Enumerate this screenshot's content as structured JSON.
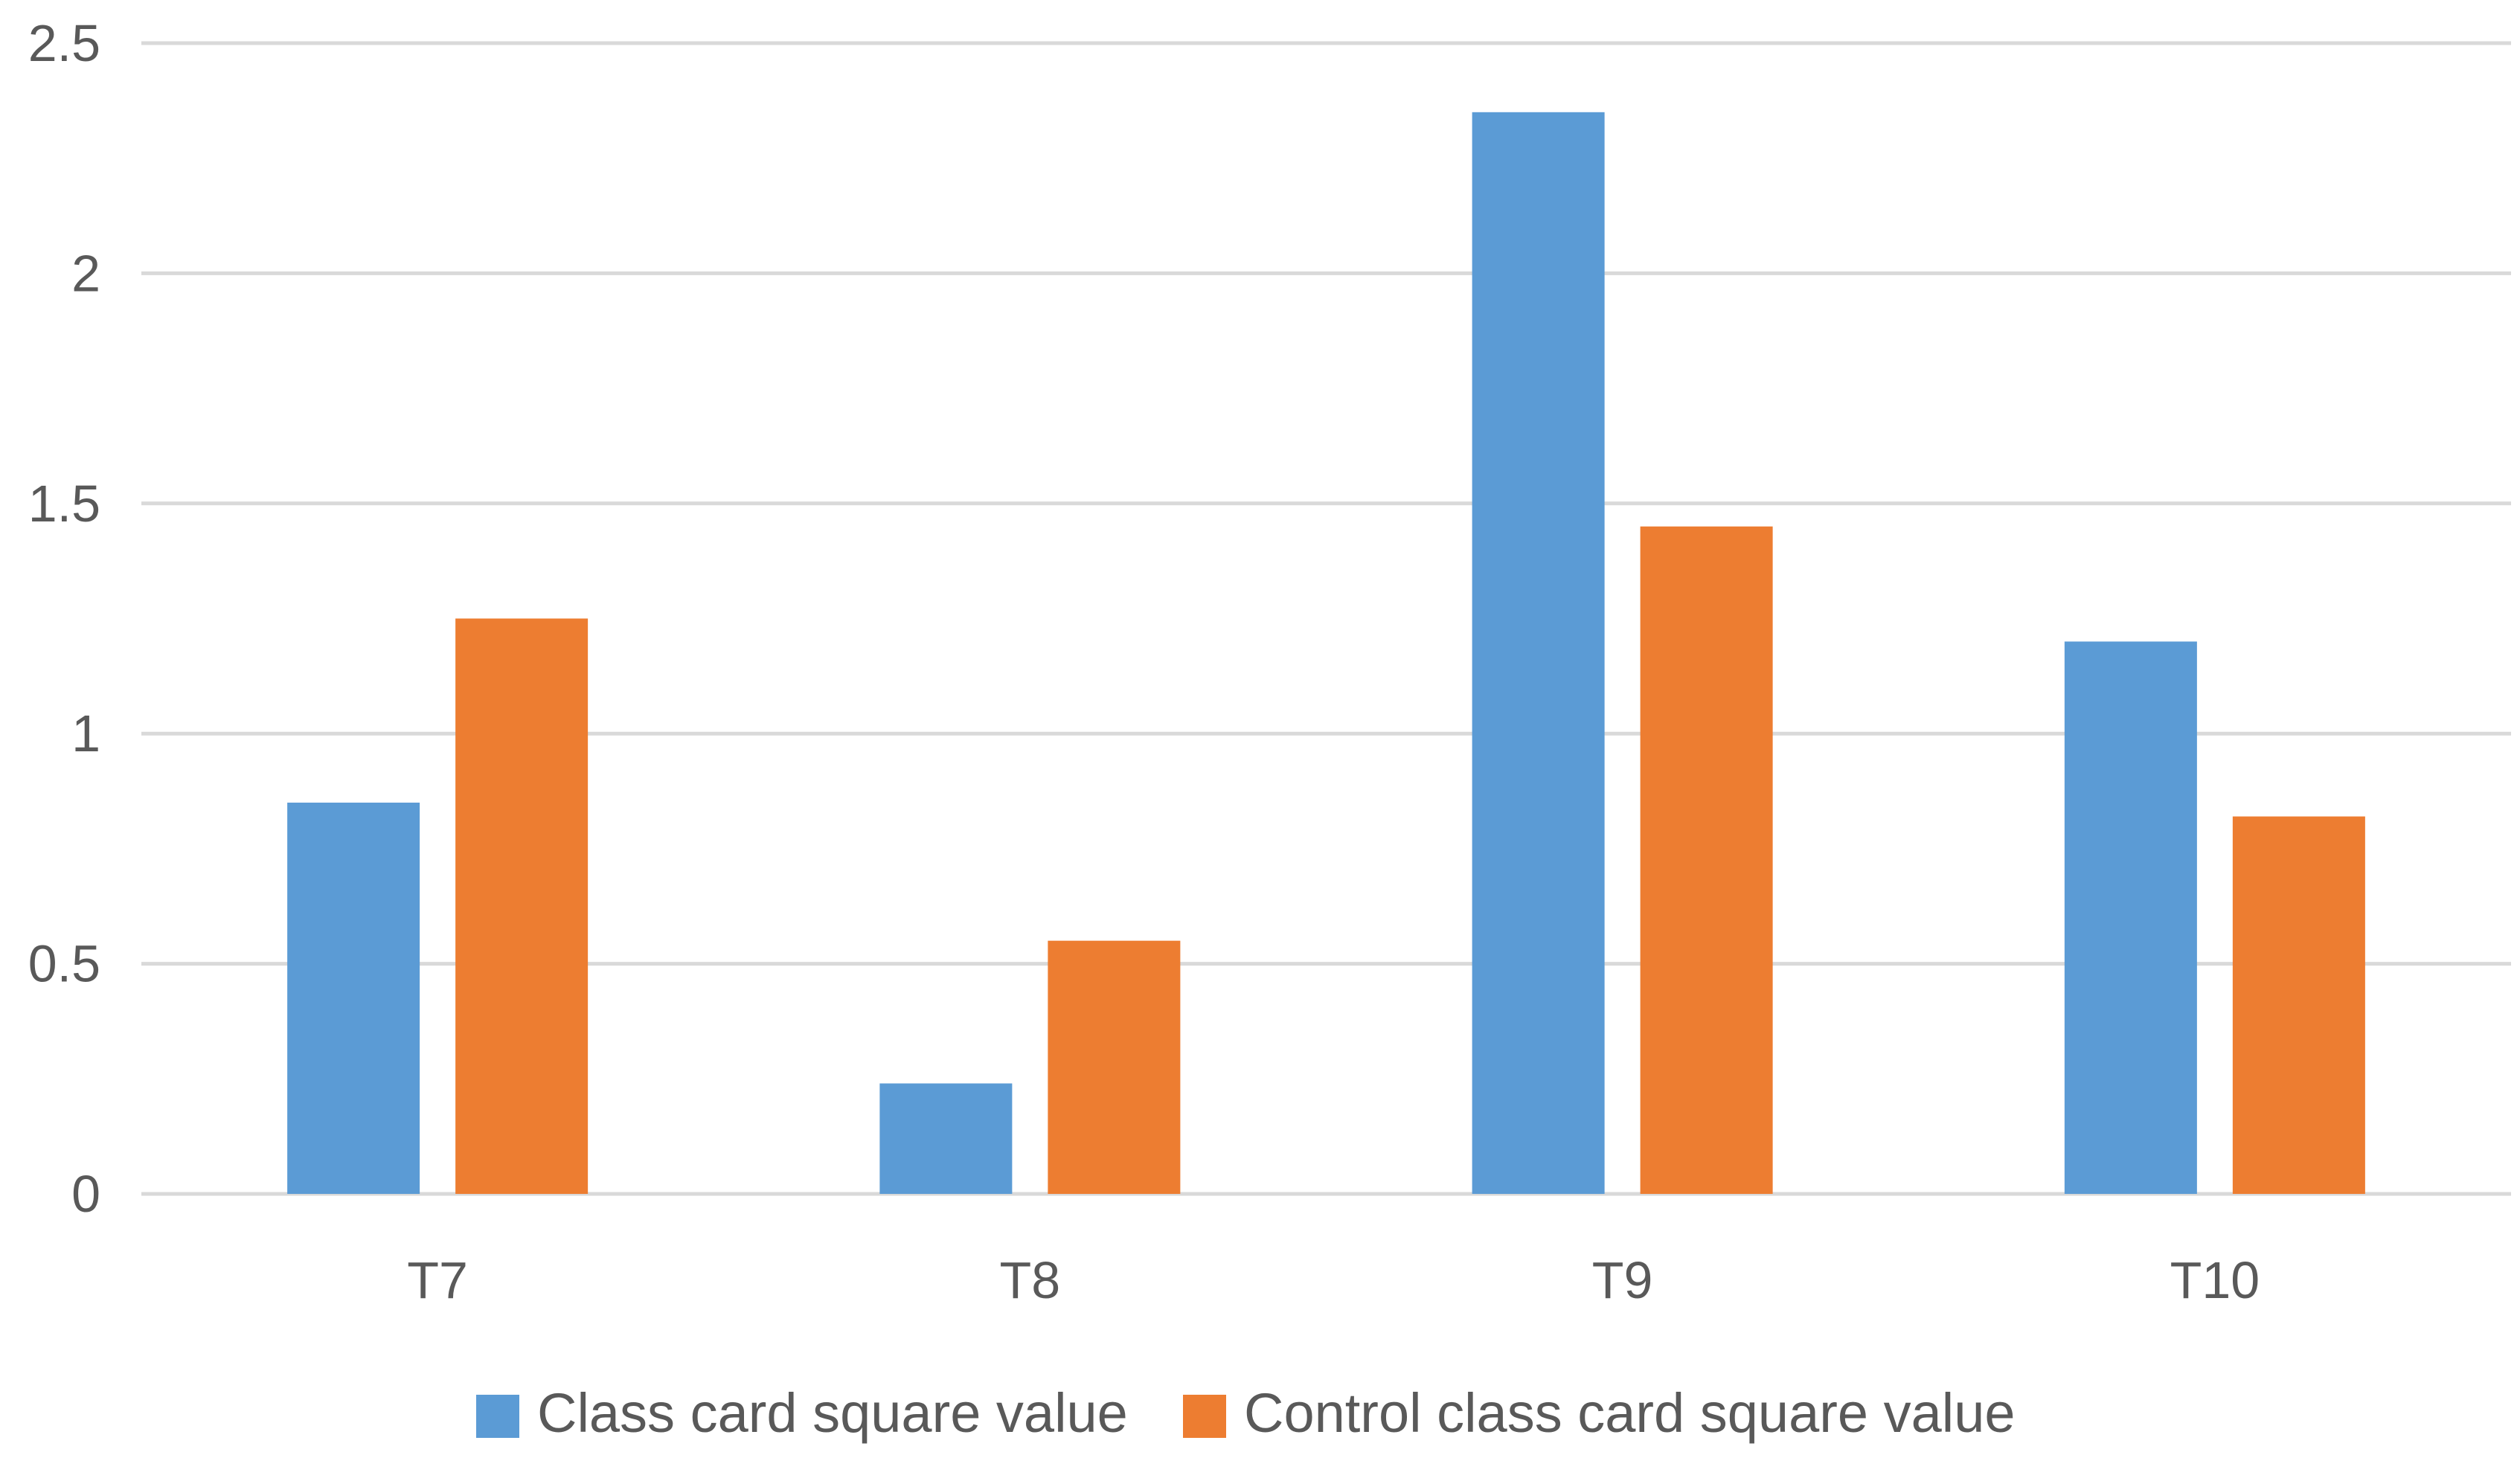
{
  "chart_data": {
    "type": "bar",
    "title": "",
    "xlabel": "",
    "ylabel": "",
    "categories": [
      "T7",
      "T8",
      "T9",
      "T10"
    ],
    "series": [
      {
        "name": "Class card square value",
        "values": [
          0.85,
          0.24,
          2.35,
          1.2
        ],
        "color": "#5b9bd5"
      },
      {
        "name": "Control class card square value",
        "values": [
          1.25,
          0.55,
          1.45,
          0.82
        ],
        "color": "#ed7d31"
      }
    ],
    "ylim": [
      0,
      2.5
    ],
    "y_ticks": [
      "0",
      "0.5",
      "1",
      "1.5",
      "2",
      "2.5"
    ],
    "grid": true,
    "legend_position": "bottom-center"
  }
}
